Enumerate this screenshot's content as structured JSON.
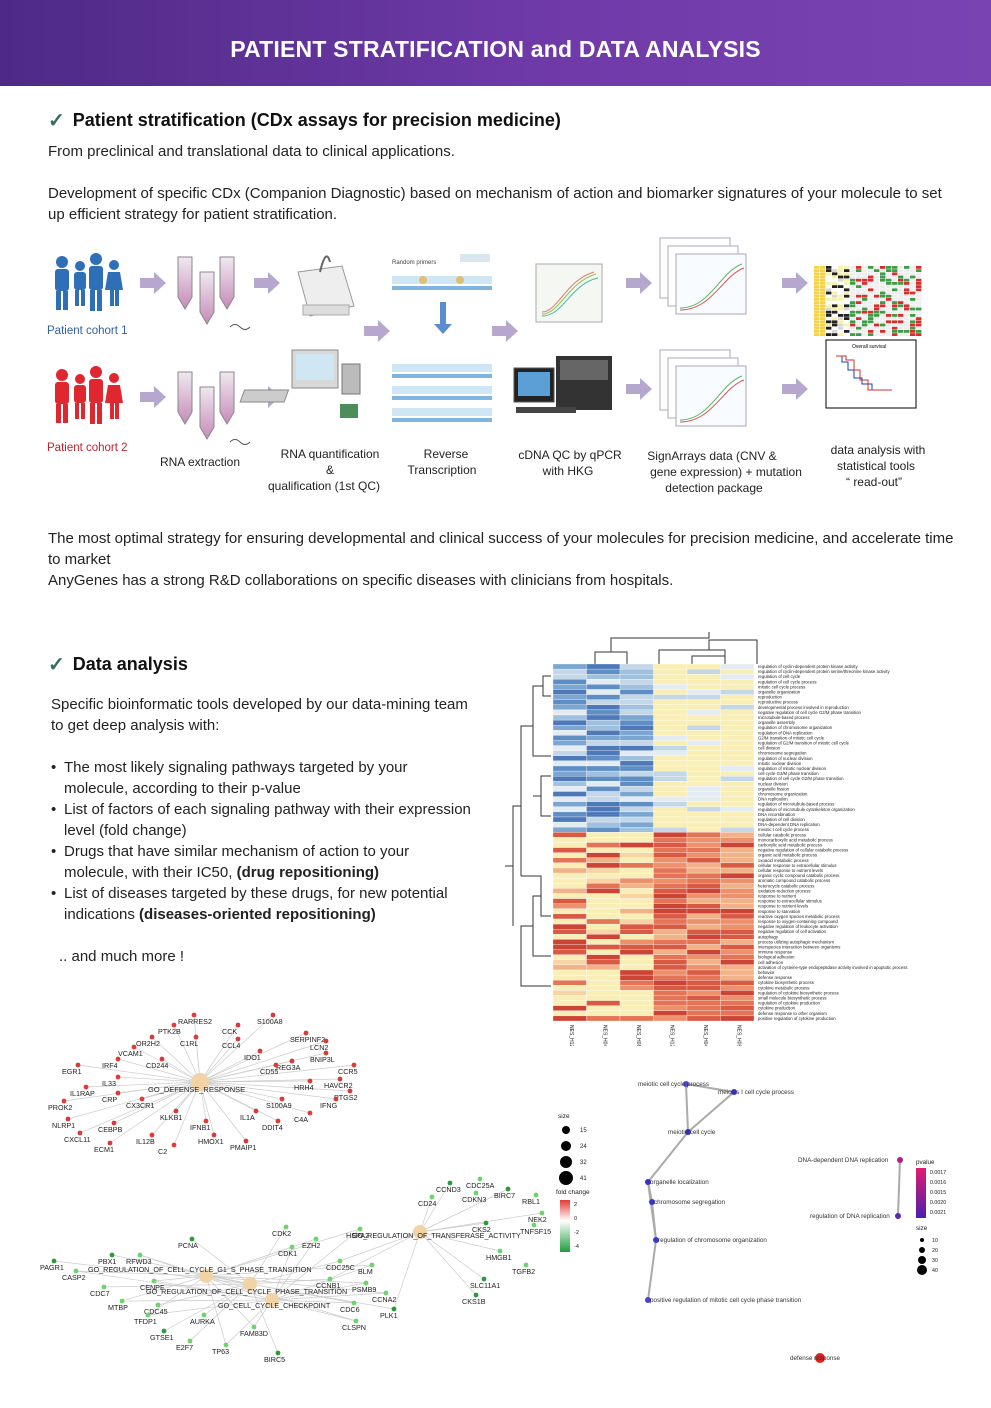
{
  "header": {
    "title": "PATIENT STRATIFICATION and DATA ANALYSIS"
  },
  "section1": {
    "heading": "Patient stratification (CDx assays for precision medicine)",
    "intro": "From preclinical and translational data to clinical applications.",
    "description": "Development of specific CDx (Companion Diagnostic) based on mechanism of action and biomarker signatures of your molecule to set up efficient strategy for patient stratification.",
    "workflow": {
      "cohort1": "Patient cohort 1",
      "cohort2": "Patient cohort 2",
      "rna_extraction": "RNA extraction",
      "rna_quant_1": "RNA quantification",
      "rna_quant_2": "&",
      "rna_quant_3": "qualification (1st QC)",
      "rt_1": "Reverse",
      "rt_2": "Transcription",
      "cdna_1": "cDNA QC by qPCR",
      "cdna_2": "with HKG",
      "sign_1": "SignArrays data (CNV &",
      "sign_2": "gene expression) + mutation",
      "sign_3": "detection package",
      "analysis_1": "data analysis with",
      "analysis_2": "statistical tools",
      "analysis_3": "“ read-out”",
      "overall_survival": "Overall survival",
      "random_primers": "Random primers"
    },
    "closing1": "The most optimal strategy for ensuring developmental and clinical success of your molecules for precision medicine, and accelerate time to market",
    "closing2": "AnyGenes has a strong R&D collaborations on specific diseases with clinicians from hospitals."
  },
  "section2": {
    "heading": "Data analysis",
    "intro": "Specific bioinformatic tools developed by our data-mining team to get deep analysis with:",
    "bullets": [
      {
        "text": "The most likely signaling pathways targeted by your molecule, according to their p-value",
        "bold": ""
      },
      {
        "text": "List of factors of each signaling pathway with their expression level (fold change)",
        "bold": ""
      },
      {
        "text": "Drugs that have similar mechanism of action to your molecule, with their IC50, ",
        "bold": "(drug repositioning)"
      },
      {
        "text": "List of diseases targeted by these drugs, for new potential indications ",
        "bold": "(diseases-oriented repositioning)"
      }
    ],
    "more": ".. and much more !"
  },
  "heatmap": {
    "columns": [
      "NES_H12_1mM",
      "NES_H04_1mM",
      "NES_H08_1mM",
      "NES_H12_1.5mM",
      "NES_H04_1.5mM",
      "NES_H08_1.5mM"
    ],
    "rows": [
      "regulation of cyclin-dependent protein kinase activity",
      "regulation of cyclin-dependent protein serine/threonine kinase activity",
      "regulation of cell cycle",
      "regulation of cell cycle process",
      "mitotic cell cycle process",
      "organelle organization",
      "reproduction",
      "reproductive process",
      "developmental process involved in reproduction",
      "negative regulation of cell cycle G2/M phase transition",
      "microtubule-based process",
      "organelle assembly",
      "regulation of chromosome organization",
      "regulation of DNA replication",
      "G2/M transition of mitotic cell cycle",
      "regulation of G2/M transition of mitotic cell cycle",
      "cell division",
      "chromosome segregation",
      "regulation of nuclear division",
      "mitotic nuclear division",
      "regulation of mitotic nuclear division",
      "cell cycle G2/M phase transition",
      "regulation of cell cycle G2/M phase transition",
      "nuclear division",
      "organelle fission",
      "chromosome organization",
      "DNA replication",
      "regulation of microtubule-based process",
      "regulation of microtubule cytoskeleton organization",
      "DNA recombination",
      "regulation of cell division",
      "DNA-dependent DNA replication",
      "meiotic I cell cycle process",
      "cellular catabolic process",
      "monocarboxylic acid metabolic process",
      "carboxylic acid metabolic process",
      "negative regulation of cellular catabolic process",
      "organic acid metabolic process",
      "oxoacid metabolic process",
      "cellular response to extracellular stimulus",
      "cellular response to nutrient levels",
      "organic cyclic compound catabolic process",
      "aromatic compound catabolic process",
      "heterocycle catabolic process",
      "oxidation-reduction process",
      "response to nutrient",
      "response to extracellular stimulus",
      "response to nutrient levels",
      "response to starvation",
      "reactive oxygen species metabolic process",
      "response to oxygen-containing compound",
      "negative regulation of leukocyte activation",
      "negative regulation of cell activation",
      "autophagy",
      "process utilizing autophagic mechanism",
      "interspecies interaction between organisms",
      "immune response",
      "biological adhesion",
      "cell adhesion",
      "activation of cysteine-type endopeptidase activity involved in apoptotic process",
      "behavior",
      "defense response",
      "cytokine biosynthetic process",
      "cytokine metabolic process",
      "regulation of cytokine biosynthetic process",
      "small molecule biosynthetic process",
      "regulation of cytokine production",
      "cytokine production",
      "defense response to other organism",
      "positive regulation of cytokine production"
    ]
  },
  "network_left": {
    "hubs": [
      "GO_DEFENSE_RESPONSE",
      "GO_REGULATION_OF_TRANSFERASE_ACTIVITY",
      "GO_REGULATION_OF_CELL_CYCLE_G1_S_PHASE_TRANSITION",
      "GO_REGULATION_OF_CELL_CYCLE_PHASE_TRANSITION",
      "GO_CELL_CYCLE_CHECKPOINT"
    ],
    "genes_defense": [
      "RARRES2",
      "S100A8",
      "CCK",
      "PTK2B",
      "SERPINF2",
      "OR2H2",
      "C1RL",
      "CCL4",
      "LCN2",
      "VCAM1",
      "IDO1",
      "BNIP3L",
      "IRF4",
      "CD244",
      "REG3A",
      "CCR5",
      "EGR1",
      "CD55",
      "IL33",
      "HRH4",
      "HAVCR2",
      "IL1RAP",
      "CRP",
      "PTGS2",
      "CX3CR1",
      "S100A9",
      "IFNG",
      "PROK2",
      "KLKB1",
      "IL1A",
      "C4A",
      "NLRP1",
      "CEBPB",
      "IFNB1",
      "DDIT4",
      "CXCL11",
      "IL12B",
      "HMOX1",
      "ECM1",
      "C2",
      "PMAIP1"
    ],
    "genes_cellcycle": [
      "CCND3",
      "CDC25A",
      "CD24",
      "CDKN3",
      "BIRC7",
      "RBL1",
      "NEK2",
      "TNFSF15",
      "CKS2",
      "HSPA2",
      "CDK2",
      "EZH2",
      "PCNA",
      "CDK1",
      "HMGB1",
      "TGFB2",
      "PBX1",
      "RFWD3",
      "CDC25C",
      "BLM",
      "PAGR1",
      "CASP2",
      "CCNB1",
      "PSMB9",
      "SLC11A1",
      "CENPF",
      "CDC7",
      "CCNA2",
      "CKS1B",
      "MTBP",
      "CDC45",
      "CDC6",
      "PLK1",
      "TFDP1",
      "AURKA",
      "CLSPN",
      "GTSE1",
      "FAM83D",
      "E2F7",
      "TP63",
      "BIRC5"
    ],
    "size_title": "size",
    "size_values": [
      "15",
      "24",
      "32",
      "41"
    ],
    "fold_title": "fold change",
    "fold_values": [
      "2",
      "0",
      "-2",
      "-4"
    ]
  },
  "network_right": {
    "nodes": [
      "meiotic cell cycle process",
      "meiosis I cell cycle process",
      "meiotic cell cycle",
      "organelle localization",
      "chromosome segregation",
      "regulation of chromosome organization",
      "positive regulation of mitotic cell cycle phase transition",
      "DNA-dependent DNA replication",
      "regulation of DNA replication",
      "defense response"
    ],
    "pvalue_title": "pvalue",
    "pvalue_values": [
      "0.0017",
      "0.0016",
      "0.0015",
      "0.0020",
      "0.0021"
    ],
    "size_title": "size",
    "size_values": [
      "10",
      "20",
      "30",
      "40"
    ]
  }
}
